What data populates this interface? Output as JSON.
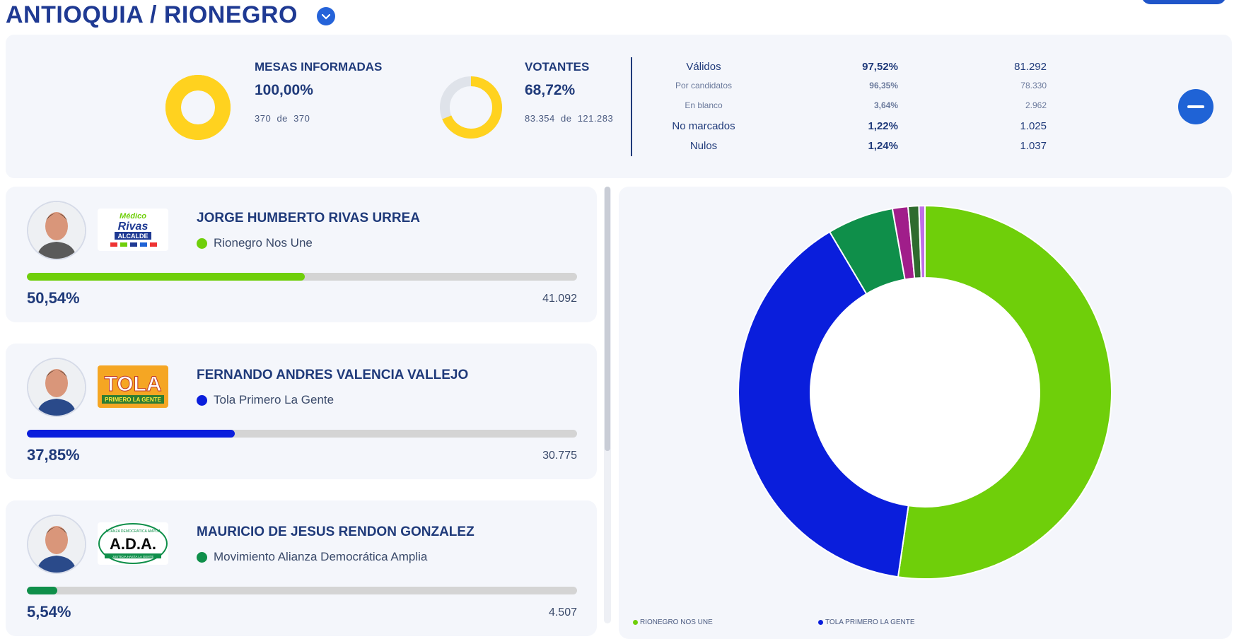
{
  "header": {
    "title": "ANTIOQUIA / RIONEGRO"
  },
  "stats": {
    "mesas": {
      "label": "MESAS INFORMADAS",
      "pct": "100,00%",
      "count": "370",
      "of": "de",
      "total": "370",
      "fraction": 1.0,
      "color": "#ffd21f",
      "track": "#ffd21f"
    },
    "votantes": {
      "label": "VOTANTES",
      "pct": "68,72%",
      "count": "83.354",
      "of": "de",
      "total": "121.283",
      "fraction": 0.6872,
      "color": "#ffd21f",
      "track": "#dfe3ea"
    },
    "table": [
      {
        "name": "Válidos",
        "pct": "97,52%",
        "value": "81.292",
        "size": "big"
      },
      {
        "name": "Por candidatos",
        "pct": "96,35%",
        "value": "78.330",
        "size": "small"
      },
      {
        "name": "En blanco",
        "pct": "3,64%",
        "value": "2.962",
        "size": "small"
      },
      {
        "name": "No marcados",
        "pct": "1,22%",
        "value": "1.025",
        "size": "big"
      },
      {
        "name": "Nulos",
        "pct": "1,24%",
        "value": "1.037",
        "size": "big"
      }
    ]
  },
  "candidates": [
    {
      "name": "JORGE HUMBERTO RIVAS URREA",
      "party": "Rionegro Nos Une",
      "color": "#6fcf0a",
      "pct": "50,54%",
      "votes": "41.092",
      "fraction": 0.5054,
      "logo": {
        "l1": "Médico",
        "l2": "Rivas",
        "l3": "ALCALDE"
      }
    },
    {
      "name": "FERNANDO ANDRES VALENCIA VALLEJO",
      "party": "Tola Primero La Gente",
      "color": "#0a1edc",
      "pct": "37,85%",
      "votes": "30.775",
      "fraction": 0.3785,
      "logo": {
        "l1": "TOLA",
        "l2": "PRIMERO LA GENTE"
      }
    },
    {
      "name": "MAURICIO DE JESUS RENDON GONZALEZ",
      "party": "Movimiento Alianza Democrática Amplia",
      "color": "#0f8f4a",
      "pct": "5,54%",
      "votes": "4.507",
      "fraction": 0.0554,
      "logo": {
        "l1": "ALIANZA DEMOCRÁTICA AMPLIA",
        "l2": "A.D.A.",
        "l3": "JUSTICIA HASTA LA GENTE"
      }
    }
  ],
  "chart_data": {
    "type": "pie",
    "series": [
      {
        "name": "RIONEGRO NOS UNE",
        "value": 50.54,
        "color": "#6fcf0a"
      },
      {
        "name": "TOLA PRIMERO LA GENTE",
        "value": 37.85,
        "color": "#0a1edc"
      },
      {
        "name": "",
        "value": 5.54,
        "color": "#0f8f4a"
      },
      {
        "name": "",
        "value": 1.3,
        "color": "#a01e8a"
      },
      {
        "name": "",
        "value": 0.9,
        "color": "#2e6b2e"
      },
      {
        "name": "",
        "value": 0.5,
        "color": "#c06ee8"
      }
    ],
    "legend": [
      "RIONEGRO NOS UNE",
      "TOLA PRIMERO LA GENTE"
    ],
    "legend_position": "bottom"
  }
}
